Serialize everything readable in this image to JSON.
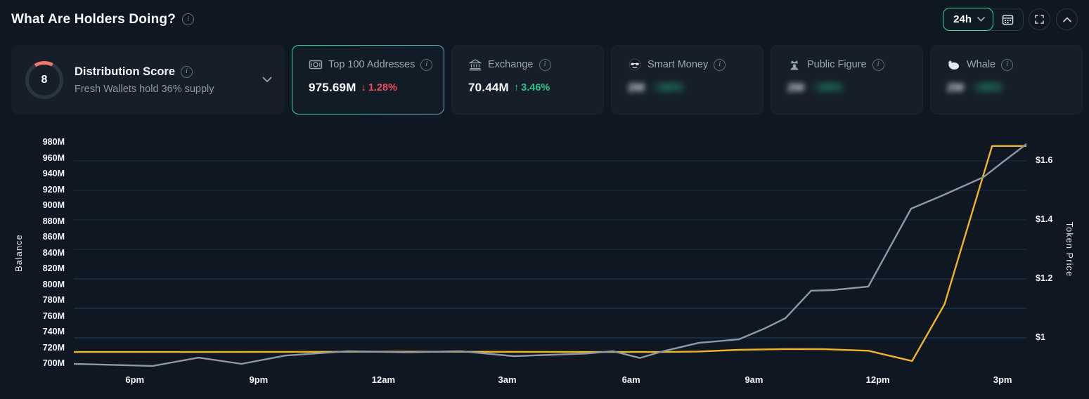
{
  "header": {
    "title": "What Are Holders Doing?",
    "timeframe": {
      "selected": "24h"
    }
  },
  "cards": {
    "distribution": {
      "score": "8",
      "title": "Distribution Score",
      "subtitle": "Fresh Wallets hold 36% supply"
    },
    "metrics": [
      {
        "label": "Top 100 Addresses",
        "icon": "banknote-icon",
        "value": "975.69M",
        "arrow": "↓",
        "change": "1.28%",
        "direction": "down",
        "selected": true,
        "masked": false
      },
      {
        "label": "Exchange",
        "icon": "bank-icon",
        "value": "70.44M",
        "arrow": "↑",
        "change": "3.46%",
        "direction": "up",
        "selected": false,
        "masked": false
      },
      {
        "label": "Smart Money",
        "icon": "sunglasses-face-icon",
        "value": "2M",
        "arrow": "↑",
        "change": "100%",
        "direction": "up",
        "selected": false,
        "masked": true
      },
      {
        "label": "Public Figure",
        "icon": "crown-person-icon",
        "value": "2M",
        "arrow": "↑",
        "change": "100%",
        "direction": "up",
        "selected": false,
        "masked": true
      },
      {
        "label": "Whale",
        "icon": "whale-icon",
        "value": "2M",
        "arrow": "↑",
        "change": "100%",
        "direction": "up",
        "selected": false,
        "masked": true
      }
    ]
  },
  "chart_data": {
    "type": "line",
    "left_axis": {
      "label": "Balance",
      "min": 700,
      "max": 980,
      "ticks": [
        {
          "label": "980M",
          "value": 980
        },
        {
          "label": "960M",
          "value": 960
        },
        {
          "label": "940M",
          "value": 940
        },
        {
          "label": "920M",
          "value": 920
        },
        {
          "label": "900M",
          "value": 900
        },
        {
          "label": "880M",
          "value": 880
        },
        {
          "label": "860M",
          "value": 860
        },
        {
          "label": "840M",
          "value": 840
        },
        {
          "label": "820M",
          "value": 820
        },
        {
          "label": "800M",
          "value": 800
        },
        {
          "label": "780M",
          "value": 780
        },
        {
          "label": "760M",
          "value": 760
        },
        {
          "label": "740M",
          "value": 740
        },
        {
          "label": "720M",
          "value": 720
        },
        {
          "label": "700M",
          "value": 700
        }
      ]
    },
    "right_axis": {
      "label": "Token Price",
      "min": 1.0,
      "max": 1.6,
      "ticks": [
        {
          "label": "$1.6",
          "value": 1.6
        },
        {
          "label": "$1.4",
          "value": 1.4
        },
        {
          "label": "$1.2",
          "value": 1.2
        },
        {
          "label": "$1",
          "value": 1.0
        }
      ]
    },
    "x_axis": {
      "ticks": [
        {
          "label": "6pm",
          "f": 0.064
        },
        {
          "label": "9pm",
          "f": 0.194
        },
        {
          "label": "12am",
          "f": 0.325
        },
        {
          "label": "3am",
          "f": 0.455
        },
        {
          "label": "6am",
          "f": 0.585
        },
        {
          "label": "9am",
          "f": 0.714
        },
        {
          "label": "12pm",
          "f": 0.844
        },
        {
          "label": "3pm",
          "f": 0.975
        }
      ]
    },
    "gridlines": {
      "axis": "right",
      "values": [
        1.0,
        1.1,
        1.2,
        1.3,
        1.4,
        1.5,
        1.6
      ]
    },
    "series": [
      {
        "name": "Balance (Top 100 Addresses)",
        "axis": "left",
        "color": "#f0b429",
        "points": [
          [
            0.0,
            715.0
          ],
          [
            0.1,
            715.0
          ],
          [
            0.218,
            715.2
          ],
          [
            0.327,
            715.5
          ],
          [
            0.439,
            715.3
          ],
          [
            0.56,
            715.0
          ],
          [
            0.618,
            715.0
          ],
          [
            0.656,
            715.6
          ],
          [
            0.698,
            717.8
          ],
          [
            0.747,
            718.8
          ],
          [
            0.788,
            718.6
          ],
          [
            0.834,
            716.6
          ],
          [
            0.88,
            703.6
          ],
          [
            0.914,
            775.5
          ],
          [
            0.964,
            975.7
          ],
          [
            1.0,
            975.7
          ]
        ]
      },
      {
        "name": "Token Price",
        "axis": "right",
        "color": "#8e99a7",
        "points": [
          [
            0.0,
            0.912
          ],
          [
            0.083,
            0.905
          ],
          [
            0.131,
            0.933
          ],
          [
            0.176,
            0.912
          ],
          [
            0.222,
            0.94
          ],
          [
            0.288,
            0.955
          ],
          [
            0.351,
            0.951
          ],
          [
            0.406,
            0.955
          ],
          [
            0.462,
            0.938
          ],
          [
            0.538,
            0.947
          ],
          [
            0.566,
            0.955
          ],
          [
            0.594,
            0.932
          ],
          [
            0.619,
            0.955
          ],
          [
            0.656,
            0.983
          ],
          [
            0.698,
            0.995
          ],
          [
            0.726,
            1.033
          ],
          [
            0.747,
            1.067
          ],
          [
            0.774,
            1.16
          ],
          [
            0.796,
            1.162
          ],
          [
            0.834,
            1.174
          ],
          [
            0.879,
            1.438
          ],
          [
            0.91,
            1.48
          ],
          [
            0.955,
            1.545
          ],
          [
            0.976,
            1.598
          ],
          [
            1.0,
            1.657
          ]
        ]
      }
    ]
  },
  "colors": {
    "background": "#0f1822",
    "card": "#151e29",
    "accent_green": "#2fd9a0",
    "up_green": "#2bc488",
    "down_red": "#f04b5d",
    "balance_line": "#f0b429",
    "price_line": "#8e99a7",
    "gauge_arc": "#f0756b"
  }
}
